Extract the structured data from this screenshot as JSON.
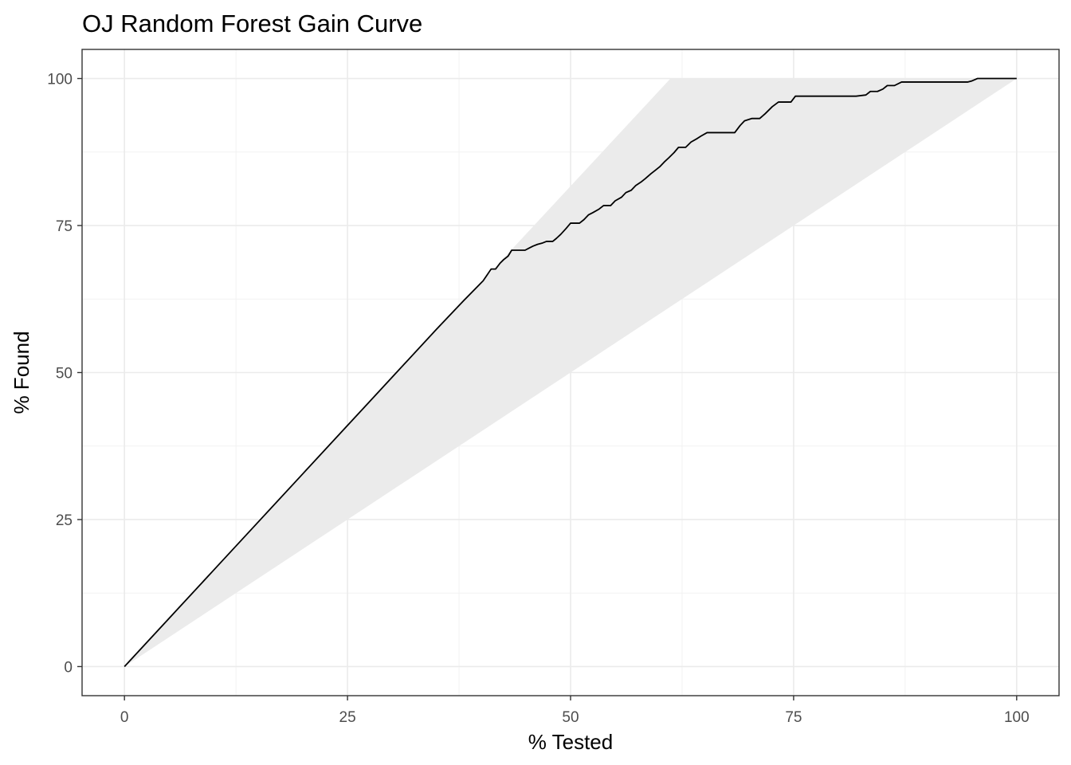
{
  "chart_data": {
    "type": "area",
    "title": "OJ Random Forest Gain Curve",
    "xlabel": "% Tested",
    "ylabel": "% Found",
    "xlim": [
      -4.75,
      104.75
    ],
    "ylim": [
      -4.95,
      104.95
    ],
    "x_ticks": [
      0,
      25,
      50,
      75,
      100
    ],
    "y_ticks": [
      0,
      25,
      50,
      75,
      100
    ],
    "x_tick_labels": [
      "0",
      "25",
      "50",
      "75",
      "100"
    ],
    "y_tick_labels": [
      "0",
      "25",
      "50",
      "75",
      "100"
    ],
    "grid": true,
    "legend": "none",
    "band": {
      "fill": "#ebebeb",
      "upper": {
        "x": [
          0,
          61.2,
          100
        ],
        "y": [
          0,
          100,
          100
        ]
      },
      "lower": {
        "x": [
          0,
          100
        ],
        "y": [
          0,
          100
        ]
      }
    },
    "series": [
      {
        "color": "#000000",
        "x": [
          0,
          5,
          10,
          15,
          20,
          25,
          30,
          35,
          38,
          40.2,
          41.1,
          41.6,
          42.1,
          42.5,
          43,
          43.4,
          44.1,
          44.9,
          45.4,
          45.8,
          46.3,
          46.8,
          47.3,
          48,
          48.4,
          48.9,
          49.5,
          50,
          51,
          51.5,
          52,
          52.5,
          53.2,
          53.7,
          54.5,
          55,
          55.7,
          56.2,
          56.8,
          57.3,
          57.9,
          58.4,
          59,
          59.5,
          60,
          60.5,
          61,
          61.6,
          62.1,
          62.9,
          63.5,
          64.2,
          64.6,
          65.3,
          65.8,
          68.4,
          69,
          69.5,
          70.3,
          71.2,
          71.8,
          72.6,
          73.3,
          74.7,
          75.2,
          82,
          83.1,
          83.6,
          84.4,
          85,
          85.5,
          86.3,
          87.1,
          88,
          94.5,
          95,
          95.6,
          100
        ],
        "y": [
          0,
          8.2,
          16.4,
          24.6,
          32.8,
          41,
          49.2,
          57.4,
          62.2,
          65.6,
          67.6,
          67.6,
          68.6,
          69.2,
          69.8,
          70.8,
          70.8,
          70.8,
          71.2,
          71.5,
          71.8,
          72,
          72.3,
          72.3,
          72.8,
          73.5,
          74.5,
          75.4,
          75.4,
          76,
          76.8,
          77.2,
          77.8,
          78.4,
          78.4,
          79.2,
          79.8,
          80.6,
          81,
          81.8,
          82.4,
          83,
          83.8,
          84.4,
          85,
          85.8,
          86.5,
          87.4,
          88.3,
          88.3,
          89.2,
          89.8,
          90.2,
          90.8,
          90.8,
          90.8,
          92,
          92.8,
          93.2,
          93.2,
          94,
          95.2,
          96,
          96,
          97,
          97,
          97.2,
          97.8,
          97.8,
          98.2,
          98.8,
          98.8,
          99.4,
          99.4,
          99.4,
          99.6,
          100,
          100
        ]
      }
    ]
  }
}
